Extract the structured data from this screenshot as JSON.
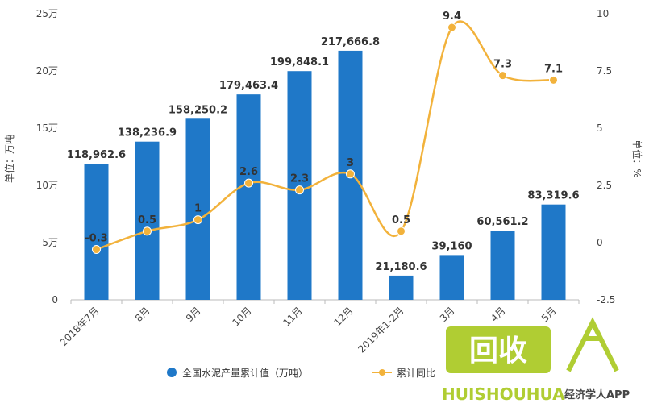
{
  "chart_data": {
    "type": "bar",
    "title": "",
    "categories": [
      "2018年7月",
      "8月",
      "9月",
      "10月",
      "11月",
      "12月",
      "2019年1-2月",
      "3月",
      "4月",
      "5月"
    ],
    "series": [
      {
        "name": "全国水泥产量累计值（万吨）",
        "type": "bar",
        "axis": "left",
        "color": "#1f78c8",
        "values": [
          118962.6,
          138236.9,
          158250.2,
          179463.4,
          199848.1,
          217666.8,
          21180.6,
          39160,
          60561.2,
          83319.6
        ],
        "labels": [
          "118,962.6",
          "138,236.9",
          "158,250.2",
          "179,463.4",
          "199,848.1",
          "217,666.8",
          "21,180.6",
          "39,160",
          "60,561.2",
          "83,319.6"
        ]
      },
      {
        "name": "累计同比",
        "type": "line",
        "axis": "right",
        "color": "#f2b23b",
        "values": [
          -0.3,
          0.5,
          1,
          2.6,
          2.3,
          3,
          0.5,
          9.4,
          7.3,
          7.1
        ],
        "labels": [
          "-0.3",
          "0.5",
          "1",
          "2.6",
          "2.3",
          "3",
          "0.5",
          "9.4",
          "7.3",
          "7.1"
        ]
      }
    ],
    "y_left": {
      "label": "单位：万吨",
      "ylim": [
        0,
        250000
      ],
      "ticks": [
        0,
        50000,
        100000,
        150000,
        200000,
        250000
      ],
      "tick_labels": [
        "0",
        "5万",
        "10万",
        "15万",
        "20万",
        "25万"
      ]
    },
    "y_right": {
      "label": "单位：%",
      "ylim": [
        -2.5,
        10
      ],
      "ticks": [
        -2.5,
        0,
        2.5,
        5,
        7.5,
        10
      ],
      "tick_labels": [
        "-2.5",
        "0",
        "2.5",
        "5",
        "7.5",
        "10"
      ]
    },
    "grid": false,
    "legend_position": "bottom"
  },
  "watermark": {
    "logo_text": "回收",
    "brand_text": "HUISHOUHUA",
    "app_text": "经济学人APP",
    "brand_color": "#a8c81e"
  }
}
